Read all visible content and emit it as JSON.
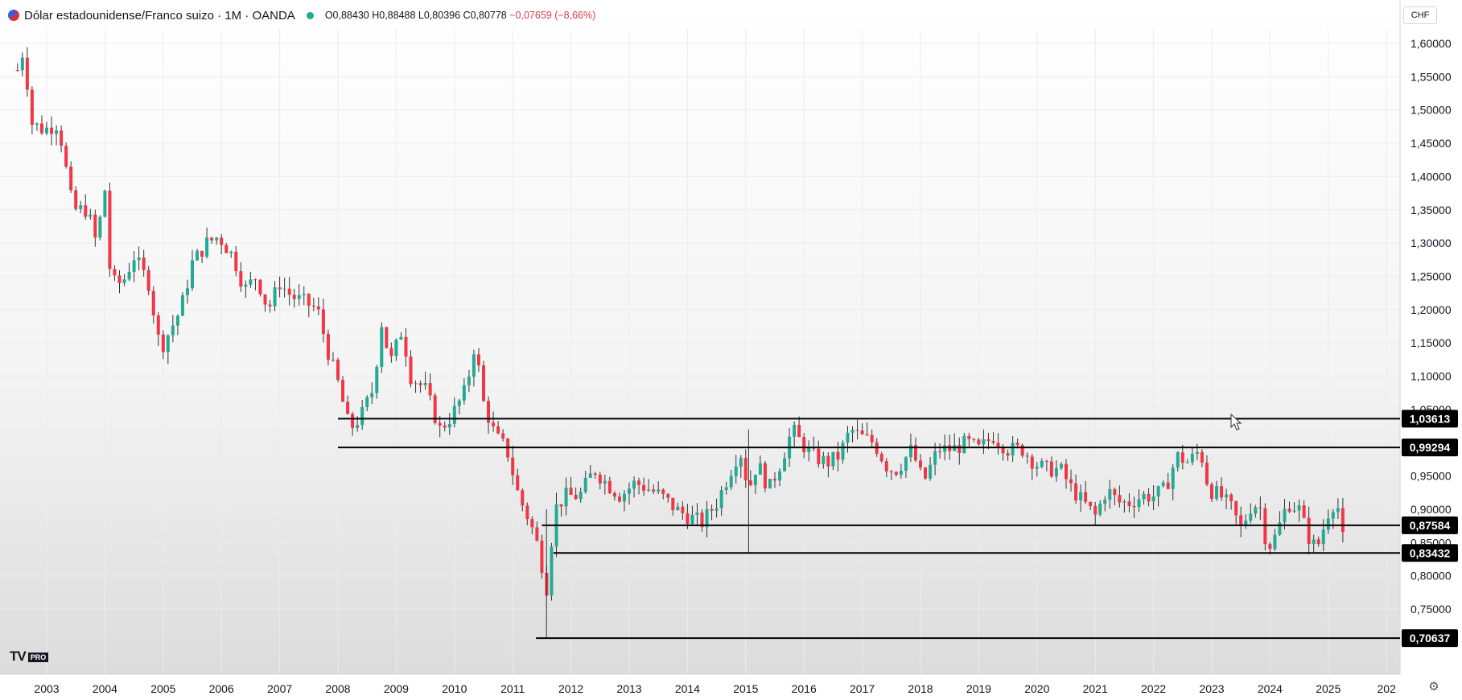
{
  "header": {
    "title": "Dólar estadounidense/Franco suizo · 1M · OANDA",
    "ohlc": {
      "o": "O0,88430",
      "h": "H0,88488",
      "l": "L0,80396",
      "c": "C0,80778",
      "change": "−0,07659 (−8,66%)"
    }
  },
  "currency_button": "CHF",
  "logo": {
    "text": "TV",
    "badge": "PRO"
  },
  "icons": {
    "symbol": "flag-icon",
    "settings": "gear-icon"
  },
  "colors": {
    "up": "#22ab94",
    "down": "#f23645",
    "line": "#000000"
  },
  "chart_data": {
    "type": "candlestick",
    "instrument": "USD/CHF",
    "timeframe": "1M",
    "x_range": [
      "2002-06",
      "2026-02"
    ],
    "ylim": [
      0.695,
      1.625
    ],
    "y_ticks": [
      "1,60000",
      "1,55000",
      "1,50000",
      "1,45000",
      "1,40000",
      "1,35000",
      "1,30000",
      "1,25000",
      "1,20000",
      "1,15000",
      "1,10000",
      "1,05000",
      "0,95000",
      "0,90000",
      "0,85000",
      "0,80000",
      "0,75000"
    ],
    "x_ticks": [
      "2003",
      "2004",
      "2005",
      "2006",
      "2007",
      "2008",
      "2009",
      "2010",
      "2011",
      "2012",
      "2013",
      "2014",
      "2015",
      "2016",
      "2017",
      "2018",
      "2019",
      "2020",
      "2021",
      "2022",
      "2023",
      "2024",
      "2025",
      "202"
    ],
    "price_path": [
      [
        2002.5,
        1.56
      ],
      [
        2002.6,
        1.59
      ],
      [
        2002.75,
        1.48
      ],
      [
        2002.95,
        1.47
      ],
      [
        2003.2,
        1.48
      ],
      [
        2003.45,
        1.35
      ],
      [
        2003.7,
        1.35
      ],
      [
        2003.85,
        1.3
      ],
      [
        2004.0,
        1.38
      ],
      [
        2004.1,
        1.24
      ],
      [
        2004.3,
        1.24
      ],
      [
        2004.5,
        1.28
      ],
      [
        2004.75,
        1.24
      ],
      [
        2004.95,
        1.14
      ],
      [
        2005.3,
        1.2
      ],
      [
        2005.5,
        1.27
      ],
      [
        2005.75,
        1.3
      ],
      [
        2005.95,
        1.31
      ],
      [
        2006.2,
        1.28
      ],
      [
        2006.4,
        1.23
      ],
      [
        2006.6,
        1.25
      ],
      [
        2006.8,
        1.2
      ],
      [
        2007.0,
        1.24
      ],
      [
        2007.2,
        1.22
      ],
      [
        2007.45,
        1.21
      ],
      [
        2007.65,
        1.2
      ],
      [
        2007.85,
        1.13
      ],
      [
        2008.0,
        1.09
      ],
      [
        2008.2,
        1.02
      ],
      [
        2008.4,
        1.04
      ],
      [
        2008.6,
        1.08
      ],
      [
        2008.75,
        1.18
      ],
      [
        2008.9,
        1.12
      ],
      [
        2009.1,
        1.17
      ],
      [
        2009.25,
        1.1
      ],
      [
        2009.5,
        1.08
      ],
      [
        2009.75,
        1.02
      ],
      [
        2009.95,
        1.04
      ],
      [
        2010.2,
        1.08
      ],
      [
        2010.35,
        1.15
      ],
      [
        2010.5,
        1.06
      ],
      [
        2010.7,
        1.01
      ],
      [
        2010.9,
        0.99
      ],
      [
        2011.1,
        0.92
      ],
      [
        2011.3,
        0.88
      ],
      [
        2011.45,
        0.84
      ],
      [
        2011.58,
        0.78
      ],
      [
        2011.72,
        0.9
      ],
      [
        2011.9,
        0.92
      ],
      [
        2012.15,
        0.92
      ],
      [
        2012.4,
        0.96
      ],
      [
        2012.6,
        0.94
      ],
      [
        2012.85,
        0.92
      ],
      [
        2013.1,
        0.94
      ],
      [
        2013.35,
        0.93
      ],
      [
        2013.55,
        0.92
      ],
      [
        2013.8,
        0.9
      ],
      [
        2014.0,
        0.89
      ],
      [
        2014.25,
        0.88
      ],
      [
        2014.5,
        0.91
      ],
      [
        2014.75,
        0.96
      ],
      [
        2014.9,
        0.99
      ],
      [
        2015.05,
        0.93
      ],
      [
        2015.2,
        0.97
      ],
      [
        2015.4,
        0.93
      ],
      [
        2015.6,
        0.97
      ],
      [
        2015.8,
        1.02
      ],
      [
        2015.95,
        1.0
      ],
      [
        2016.15,
        0.98
      ],
      [
        2016.4,
        0.97
      ],
      [
        2016.6,
        0.98
      ],
      [
        2016.8,
        1.02
      ],
      [
        2016.95,
        1.01
      ],
      [
        2017.2,
        1.0
      ],
      [
        2017.45,
        0.96
      ],
      [
        2017.6,
        0.96
      ],
      [
        2017.85,
        0.99
      ],
      [
        2018.05,
        0.94
      ],
      [
        2018.3,
        0.99
      ],
      [
        2018.55,
        0.99
      ],
      [
        2018.8,
        1.0
      ],
      [
        2019.0,
        0.99
      ],
      [
        2019.25,
        1.01
      ],
      [
        2019.5,
        0.99
      ],
      [
        2019.75,
        0.99
      ],
      [
        2019.95,
        0.97
      ],
      [
        2020.15,
        0.96
      ],
      [
        2020.4,
        0.96
      ],
      [
        2020.6,
        0.93
      ],
      [
        2020.8,
        0.91
      ],
      [
        2021.0,
        0.89
      ],
      [
        2021.2,
        0.93
      ],
      [
        2021.4,
        0.91
      ],
      [
        2021.6,
        0.91
      ],
      [
        2021.8,
        0.92
      ],
      [
        2022.0,
        0.92
      ],
      [
        2022.2,
        0.93
      ],
      [
        2022.4,
        0.98
      ],
      [
        2022.6,
        0.97
      ],
      [
        2022.8,
        0.99
      ],
      [
        2022.95,
        0.93
      ],
      [
        2023.15,
        0.92
      ],
      [
        2023.35,
        0.9
      ],
      [
        2023.5,
        0.87
      ],
      [
        2023.7,
        0.91
      ],
      [
        2023.85,
        0.9
      ],
      [
        2023.95,
        0.84
      ],
      [
        2024.1,
        0.86
      ],
      [
        2024.3,
        0.91
      ],
      [
        2024.5,
        0.9
      ],
      [
        2024.65,
        0.86
      ],
      [
        2024.8,
        0.84
      ],
      [
        2024.95,
        0.88
      ],
      [
        2025.05,
        0.91
      ],
      [
        2025.2,
        0.9
      ],
      [
        2025.3,
        0.81
      ]
    ],
    "levels": [
      {
        "label": "1,03613",
        "value": 1.03613,
        "from": 2008.0
      },
      {
        "label": "0,99294",
        "value": 0.99294,
        "from": 2008.0
      },
      {
        "label": "0,87584",
        "value": 0.87584,
        "from": 2011.5
      },
      {
        "label": "0,83432",
        "value": 0.83432,
        "from": 2011.7
      },
      {
        "label": "0,70637",
        "value": 0.70637,
        "from": 2011.4
      }
    ]
  }
}
